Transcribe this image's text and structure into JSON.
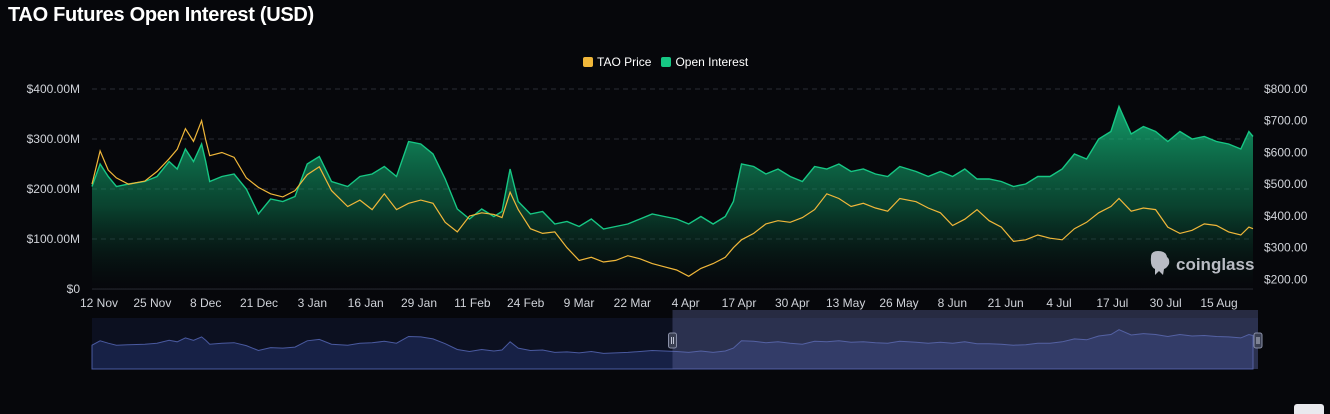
{
  "title": "TAO Futures Open Interest (USD)",
  "legend": {
    "items": [
      {
        "label": "TAO Price",
        "color": "#f0b73a"
      },
      {
        "label": "Open Interest",
        "color": "#16c784"
      }
    ]
  },
  "watermark": "coinglass",
  "chart_data": {
    "type": "area",
    "title": "TAO Futures Open Interest (USD)",
    "legend_position": "top-center",
    "grid": true,
    "x_ticks": [
      "12 Nov",
      "25 Nov",
      "8 Dec",
      "21 Dec",
      "3 Jan",
      "16 Jan",
      "29 Jan",
      "11 Feb",
      "24 Feb",
      "9 Mar",
      "22 Mar",
      "4 Apr",
      "17 Apr",
      "30 Apr",
      "13 May",
      "26 May",
      "8 Jun",
      "21 Jun",
      "4 Jul",
      "17 Jul",
      "30 Jul",
      "15 Aug"
    ],
    "x_start": "2024-11-12",
    "x_end": "2025-08-25",
    "y_left": {
      "ticks": [
        "$0",
        "$100.00M",
        "$200.00M",
        "$300.00M",
        "$400.00M"
      ],
      "range": [
        0,
        400000000
      ]
    },
    "y_right": {
      "ticks": [
        "$200.00",
        "$300.00",
        "$400.00",
        "$500.00",
        "$600.00",
        "$700.00",
        "$800.00"
      ],
      "range": [
        170,
        800
      ]
    },
    "series": [
      {
        "name": "Open Interest",
        "axis": "left",
        "color": "#16c784",
        "points": [
          [
            "2024-11-12",
            205000000
          ],
          [
            "2024-11-14",
            250000000
          ],
          [
            "2024-11-16",
            225000000
          ],
          [
            "2024-11-18",
            205000000
          ],
          [
            "2024-11-21",
            210000000
          ],
          [
            "2024-11-25",
            215000000
          ],
          [
            "2024-11-28",
            225000000
          ],
          [
            "2024-12-01",
            255000000
          ],
          [
            "2024-12-03",
            240000000
          ],
          [
            "2024-12-05",
            280000000
          ],
          [
            "2024-12-07",
            255000000
          ],
          [
            "2024-12-09",
            290000000
          ],
          [
            "2024-12-10",
            255000000
          ],
          [
            "2024-12-11",
            215000000
          ],
          [
            "2024-12-14",
            225000000
          ],
          [
            "2024-12-17",
            230000000
          ],
          [
            "2024-12-20",
            200000000
          ],
          [
            "2024-12-23",
            150000000
          ],
          [
            "2024-12-26",
            180000000
          ],
          [
            "2024-12-29",
            175000000
          ],
          [
            "2025-01-01",
            185000000
          ],
          [
            "2025-01-04",
            250000000
          ],
          [
            "2025-01-07",
            265000000
          ],
          [
            "2025-01-10",
            215000000
          ],
          [
            "2025-01-14",
            205000000
          ],
          [
            "2025-01-17",
            225000000
          ],
          [
            "2025-01-20",
            230000000
          ],
          [
            "2025-01-23",
            245000000
          ],
          [
            "2025-01-26",
            225000000
          ],
          [
            "2025-01-29",
            295000000
          ],
          [
            "2025-02-01",
            290000000
          ],
          [
            "2025-02-04",
            270000000
          ],
          [
            "2025-02-07",
            220000000
          ],
          [
            "2025-02-10",
            160000000
          ],
          [
            "2025-02-13",
            140000000
          ],
          [
            "2025-02-16",
            160000000
          ],
          [
            "2025-02-19",
            145000000
          ],
          [
            "2025-02-21",
            155000000
          ],
          [
            "2025-02-23",
            240000000
          ],
          [
            "2025-02-25",
            175000000
          ],
          [
            "2025-02-28",
            150000000
          ],
          [
            "2025-03-03",
            155000000
          ],
          [
            "2025-03-06",
            130000000
          ],
          [
            "2025-03-09",
            135000000
          ],
          [
            "2025-03-12",
            125000000
          ],
          [
            "2025-03-15",
            140000000
          ],
          [
            "2025-03-18",
            120000000
          ],
          [
            "2025-03-21",
            125000000
          ],
          [
            "2025-03-24",
            130000000
          ],
          [
            "2025-03-27",
            140000000
          ],
          [
            "2025-03-30",
            150000000
          ],
          [
            "2025-04-02",
            145000000
          ],
          [
            "2025-04-05",
            140000000
          ],
          [
            "2025-04-08",
            130000000
          ],
          [
            "2025-04-11",
            145000000
          ],
          [
            "2025-04-14",
            130000000
          ],
          [
            "2025-04-17",
            145000000
          ],
          [
            "2025-04-19",
            175000000
          ],
          [
            "2025-04-21",
            250000000
          ],
          [
            "2025-04-24",
            245000000
          ],
          [
            "2025-04-27",
            230000000
          ],
          [
            "2025-04-30",
            240000000
          ],
          [
            "2025-05-03",
            225000000
          ],
          [
            "2025-05-06",
            215000000
          ],
          [
            "2025-05-09",
            245000000
          ],
          [
            "2025-05-12",
            240000000
          ],
          [
            "2025-05-15",
            250000000
          ],
          [
            "2025-05-18",
            235000000
          ],
          [
            "2025-05-21",
            240000000
          ],
          [
            "2025-05-24",
            230000000
          ],
          [
            "2025-05-27",
            225000000
          ],
          [
            "2025-05-30",
            245000000
          ],
          [
            "2025-06-03",
            235000000
          ],
          [
            "2025-06-06",
            225000000
          ],
          [
            "2025-06-09",
            235000000
          ],
          [
            "2025-06-12",
            225000000
          ],
          [
            "2025-06-15",
            240000000
          ],
          [
            "2025-06-18",
            220000000
          ],
          [
            "2025-06-21",
            220000000
          ],
          [
            "2025-06-24",
            215000000
          ],
          [
            "2025-06-27",
            205000000
          ],
          [
            "2025-06-30",
            210000000
          ],
          [
            "2025-07-03",
            225000000
          ],
          [
            "2025-07-06",
            225000000
          ],
          [
            "2025-07-09",
            240000000
          ],
          [
            "2025-07-12",
            270000000
          ],
          [
            "2025-07-15",
            260000000
          ],
          [
            "2025-07-18",
            300000000
          ],
          [
            "2025-07-21",
            315000000
          ],
          [
            "2025-07-23",
            365000000
          ],
          [
            "2025-07-26",
            310000000
          ],
          [
            "2025-07-29",
            325000000
          ],
          [
            "2025-08-01",
            315000000
          ],
          [
            "2025-08-04",
            295000000
          ],
          [
            "2025-08-07",
            315000000
          ],
          [
            "2025-08-10",
            300000000
          ],
          [
            "2025-08-13",
            305000000
          ],
          [
            "2025-08-16",
            295000000
          ],
          [
            "2025-08-19",
            290000000
          ],
          [
            "2025-08-22",
            280000000
          ],
          [
            "2025-08-24",
            315000000
          ],
          [
            "2025-08-25",
            305000000
          ]
        ]
      },
      {
        "name": "TAO Price",
        "axis": "right",
        "color": "#f0b73a",
        "points": [
          [
            "2024-11-12",
            500
          ],
          [
            "2024-11-14",
            605
          ],
          [
            "2024-11-16",
            545
          ],
          [
            "2024-11-18",
            520
          ],
          [
            "2024-11-21",
            500
          ],
          [
            "2024-11-25",
            510
          ],
          [
            "2024-11-28",
            540
          ],
          [
            "2024-12-01",
            580
          ],
          [
            "2024-12-03",
            610
          ],
          [
            "2024-12-05",
            675
          ],
          [
            "2024-12-07",
            635
          ],
          [
            "2024-12-09",
            700
          ],
          [
            "2024-12-10",
            640
          ],
          [
            "2024-12-11",
            590
          ],
          [
            "2024-12-14",
            600
          ],
          [
            "2024-12-17",
            585
          ],
          [
            "2024-12-20",
            520
          ],
          [
            "2024-12-23",
            490
          ],
          [
            "2024-12-26",
            470
          ],
          [
            "2024-12-29",
            460
          ],
          [
            "2025-01-01",
            480
          ],
          [
            "2025-01-04",
            530
          ],
          [
            "2025-01-07",
            555
          ],
          [
            "2025-01-10",
            480
          ],
          [
            "2025-01-14",
            430
          ],
          [
            "2025-01-17",
            450
          ],
          [
            "2025-01-20",
            420
          ],
          [
            "2025-01-23",
            470
          ],
          [
            "2025-01-26",
            420
          ],
          [
            "2025-01-29",
            440
          ],
          [
            "2025-02-01",
            450
          ],
          [
            "2025-02-04",
            440
          ],
          [
            "2025-02-07",
            380
          ],
          [
            "2025-02-10",
            350
          ],
          [
            "2025-02-13",
            400
          ],
          [
            "2025-02-16",
            410
          ],
          [
            "2025-02-19",
            405
          ],
          [
            "2025-02-21",
            395
          ],
          [
            "2025-02-23",
            475
          ],
          [
            "2025-02-25",
            420
          ],
          [
            "2025-02-28",
            360
          ],
          [
            "2025-03-03",
            345
          ],
          [
            "2025-03-06",
            350
          ],
          [
            "2025-03-09",
            300
          ],
          [
            "2025-03-12",
            260
          ],
          [
            "2025-03-15",
            270
          ],
          [
            "2025-03-18",
            255
          ],
          [
            "2025-03-21",
            260
          ],
          [
            "2025-03-24",
            275
          ],
          [
            "2025-03-27",
            265
          ],
          [
            "2025-03-30",
            250
          ],
          [
            "2025-04-02",
            240
          ],
          [
            "2025-04-05",
            230
          ],
          [
            "2025-04-08",
            210
          ],
          [
            "2025-04-11",
            235
          ],
          [
            "2025-04-14",
            250
          ],
          [
            "2025-04-17",
            270
          ],
          [
            "2025-04-19",
            300
          ],
          [
            "2025-04-21",
            325
          ],
          [
            "2025-04-24",
            345
          ],
          [
            "2025-04-27",
            375
          ],
          [
            "2025-04-30",
            385
          ],
          [
            "2025-05-03",
            380
          ],
          [
            "2025-05-06",
            395
          ],
          [
            "2025-05-09",
            420
          ],
          [
            "2025-05-12",
            470
          ],
          [
            "2025-05-15",
            455
          ],
          [
            "2025-05-18",
            430
          ],
          [
            "2025-05-21",
            440
          ],
          [
            "2025-05-24",
            425
          ],
          [
            "2025-05-27",
            415
          ],
          [
            "2025-05-30",
            455
          ],
          [
            "2025-06-03",
            445
          ],
          [
            "2025-06-06",
            425
          ],
          [
            "2025-06-09",
            410
          ],
          [
            "2025-06-12",
            370
          ],
          [
            "2025-06-15",
            390
          ],
          [
            "2025-06-18",
            420
          ],
          [
            "2025-06-21",
            385
          ],
          [
            "2025-06-24",
            365
          ],
          [
            "2025-06-27",
            320
          ],
          [
            "2025-06-30",
            325
          ],
          [
            "2025-07-03",
            340
          ],
          [
            "2025-07-06",
            330
          ],
          [
            "2025-07-09",
            325
          ],
          [
            "2025-07-12",
            360
          ],
          [
            "2025-07-15",
            380
          ],
          [
            "2025-07-18",
            410
          ],
          [
            "2025-07-21",
            430
          ],
          [
            "2025-07-23",
            455
          ],
          [
            "2025-07-26",
            415
          ],
          [
            "2025-07-29",
            425
          ],
          [
            "2025-08-01",
            420
          ],
          [
            "2025-08-04",
            365
          ],
          [
            "2025-08-07",
            345
          ],
          [
            "2025-08-10",
            355
          ],
          [
            "2025-08-13",
            375
          ],
          [
            "2025-08-16",
            370
          ],
          [
            "2025-08-19",
            350
          ],
          [
            "2025-08-22",
            340
          ],
          [
            "2025-08-24",
            365
          ],
          [
            "2025-08-25",
            360
          ]
        ]
      }
    ],
    "navigator": {
      "selected_from": "2025-04-04",
      "selected_to": "2025-08-25"
    }
  }
}
